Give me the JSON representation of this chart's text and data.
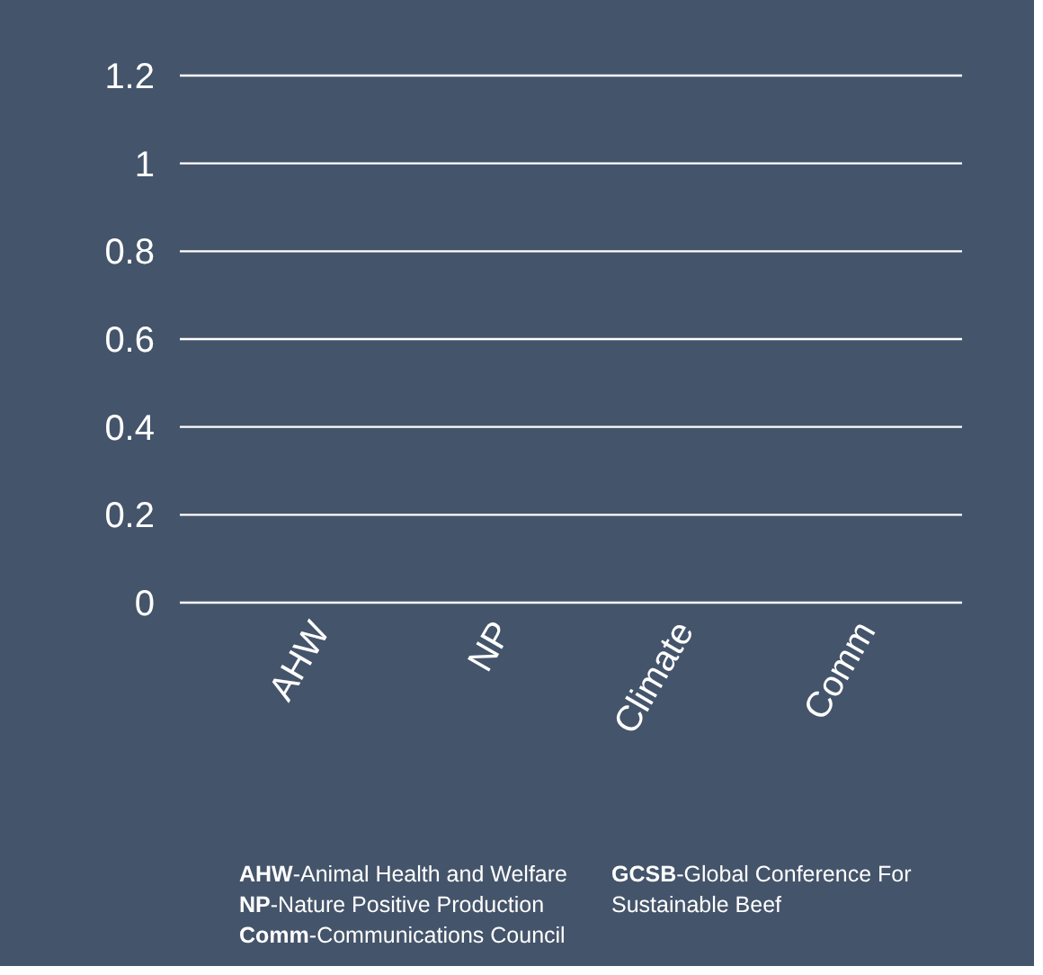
{
  "chart_data": {
    "type": "bar",
    "categories": [
      "AHW",
      "NP",
      "Climate",
      "Comm"
    ],
    "values": [
      0,
      0,
      0,
      0
    ],
    "ylim": [
      0,
      1.2
    ],
    "yticks": [
      0,
      0.2,
      0.4,
      0.6,
      0.8,
      1,
      1.2
    ],
    "grid": "y",
    "annotations": [
      "AHW-Animal Health and Welfare",
      "NP-Nature Positive Production",
      "Comm-Communications Council",
      "GCSB-Global Conference For Sustainable Beef"
    ]
  }
}
